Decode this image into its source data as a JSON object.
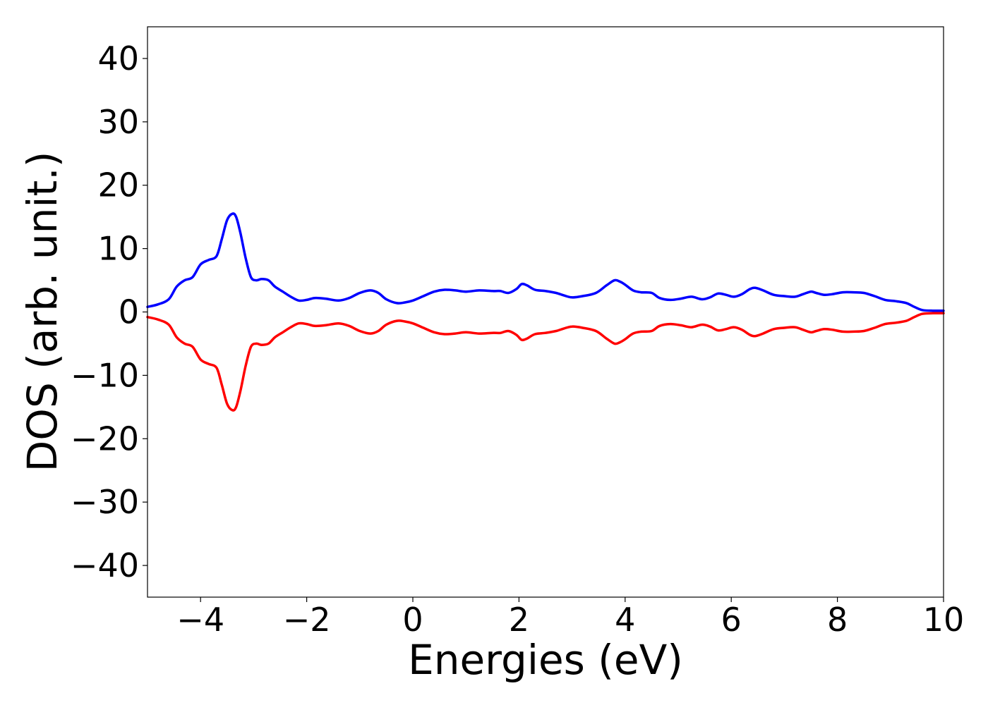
{
  "chart_data": {
    "type": "line",
    "title": "",
    "xlabel": "Energies (eV)",
    "ylabel": "DOS (arb. unit.)",
    "xlim": [
      -5,
      10
    ],
    "ylim": [
      -45,
      45
    ],
    "xticks": [
      -4,
      -2,
      0,
      2,
      4,
      6,
      8,
      10
    ],
    "yticks": [
      40,
      30,
      20,
      10,
      0,
      -10,
      -20,
      -30,
      -40
    ],
    "xtick_labels": [
      "−4",
      "−2",
      "0",
      "2",
      "4",
      "6",
      "8",
      "10"
    ],
    "ytick_labels": [
      "40",
      "30",
      "20",
      "10",
      "0",
      "−10",
      "−20",
      "−30",
      "−40"
    ],
    "grid": false,
    "legend": "none",
    "series": [
      {
        "color": "#0000ff",
        "x": [
          -5.0,
          -4.8,
          -4.6,
          -4.45,
          -4.3,
          -4.15,
          -4.0,
          -3.85,
          -3.7,
          -3.6,
          -3.5,
          -3.4,
          -3.33,
          -3.25,
          -3.15,
          -3.05,
          -2.95,
          -2.85,
          -2.72,
          -2.6,
          -2.45,
          -2.3,
          -2.15,
          -2.0,
          -1.85,
          -1.65,
          -1.4,
          -1.2,
          -1.0,
          -0.8,
          -0.65,
          -0.5,
          -0.3,
          -0.15,
          0.0,
          0.2,
          0.4,
          0.6,
          0.8,
          1.0,
          1.25,
          1.5,
          1.65,
          1.8,
          1.95,
          2.05,
          2.15,
          2.3,
          2.5,
          2.7,
          2.85,
          3.0,
          3.2,
          3.45,
          3.65,
          3.8,
          3.9,
          4.0,
          4.15,
          4.3,
          4.5,
          4.65,
          4.85,
          5.05,
          5.25,
          5.45,
          5.6,
          5.75,
          5.9,
          6.05,
          6.2,
          6.35,
          6.45,
          6.6,
          6.8,
          7.0,
          7.2,
          7.35,
          7.5,
          7.6,
          7.75,
          7.9,
          8.1,
          8.3,
          8.5,
          8.7,
          8.9,
          9.1,
          9.3,
          9.45,
          9.6,
          9.8,
          10.0
        ],
        "y": [
          0.8,
          1.2,
          2.0,
          4.0,
          5.0,
          5.5,
          7.5,
          8.2,
          8.8,
          11.5,
          14.5,
          15.5,
          15.0,
          12.5,
          8.5,
          5.5,
          5.0,
          5.2,
          5.0,
          4.0,
          3.2,
          2.4,
          1.8,
          1.9,
          2.2,
          2.1,
          1.8,
          2.2,
          3.0,
          3.4,
          3.0,
          2.0,
          1.4,
          1.5,
          1.8,
          2.5,
          3.2,
          3.5,
          3.4,
          3.2,
          3.4,
          3.3,
          3.3,
          3.0,
          3.6,
          4.4,
          4.2,
          3.5,
          3.3,
          3.0,
          2.6,
          2.3,
          2.5,
          3.0,
          4.2,
          5.0,
          4.8,
          4.3,
          3.4,
          3.1,
          3.0,
          2.2,
          1.9,
          2.1,
          2.4,
          2.0,
          2.3,
          2.9,
          2.7,
          2.4,
          2.8,
          3.6,
          3.8,
          3.4,
          2.7,
          2.5,
          2.4,
          2.8,
          3.2,
          3.0,
          2.7,
          2.8,
          3.1,
          3.1,
          3.0,
          2.5,
          1.9,
          1.7,
          1.4,
          0.8,
          0.3,
          0.2,
          0.2
        ]
      },
      {
        "color": "#ff0000",
        "x": [
          -5.0,
          -4.8,
          -4.6,
          -4.45,
          -4.3,
          -4.15,
          -4.0,
          -3.85,
          -3.7,
          -3.6,
          -3.5,
          -3.4,
          -3.33,
          -3.25,
          -3.15,
          -3.05,
          -2.95,
          -2.85,
          -2.72,
          -2.6,
          -2.45,
          -2.3,
          -2.15,
          -2.0,
          -1.85,
          -1.65,
          -1.4,
          -1.2,
          -1.0,
          -0.8,
          -0.65,
          -0.5,
          -0.3,
          -0.15,
          0.0,
          0.2,
          0.4,
          0.6,
          0.8,
          1.0,
          1.25,
          1.5,
          1.65,
          1.8,
          1.95,
          2.05,
          2.15,
          2.3,
          2.5,
          2.7,
          2.85,
          3.0,
          3.2,
          3.45,
          3.65,
          3.8,
          3.9,
          4.0,
          4.15,
          4.3,
          4.5,
          4.65,
          4.85,
          5.05,
          5.25,
          5.45,
          5.6,
          5.75,
          5.9,
          6.05,
          6.2,
          6.35,
          6.45,
          6.6,
          6.8,
          7.0,
          7.2,
          7.35,
          7.5,
          7.6,
          7.75,
          7.9,
          8.1,
          8.3,
          8.5,
          8.7,
          8.9,
          9.1,
          9.3,
          9.45,
          9.6,
          9.8,
          10.0
        ],
        "y": [
          -0.8,
          -1.2,
          -2.0,
          -4.0,
          -5.0,
          -5.5,
          -7.5,
          -8.2,
          -8.8,
          -11.5,
          -14.5,
          -15.5,
          -15.0,
          -12.5,
          -8.5,
          -5.5,
          -5.0,
          -5.2,
          -5.0,
          -4.0,
          -3.2,
          -2.4,
          -1.8,
          -1.9,
          -2.2,
          -2.1,
          -1.8,
          -2.2,
          -3.0,
          -3.4,
          -3.0,
          -2.0,
          -1.4,
          -1.5,
          -1.8,
          -2.5,
          -3.2,
          -3.5,
          -3.4,
          -3.2,
          -3.4,
          -3.3,
          -3.3,
          -3.0,
          -3.6,
          -4.4,
          -4.2,
          -3.5,
          -3.3,
          -3.0,
          -2.6,
          -2.3,
          -2.5,
          -3.0,
          -4.2,
          -5.0,
          -4.8,
          -4.3,
          -3.4,
          -3.1,
          -3.0,
          -2.2,
          -1.9,
          -2.1,
          -2.4,
          -2.0,
          -2.3,
          -2.9,
          -2.7,
          -2.4,
          -2.8,
          -3.6,
          -3.8,
          -3.4,
          -2.7,
          -2.5,
          -2.4,
          -2.8,
          -3.2,
          -3.0,
          -2.7,
          -2.8,
          -3.1,
          -3.1,
          -3.0,
          -2.5,
          -1.9,
          -1.7,
          -1.4,
          -0.8,
          -0.3,
          -0.2,
          -0.2
        ]
      }
    ]
  }
}
